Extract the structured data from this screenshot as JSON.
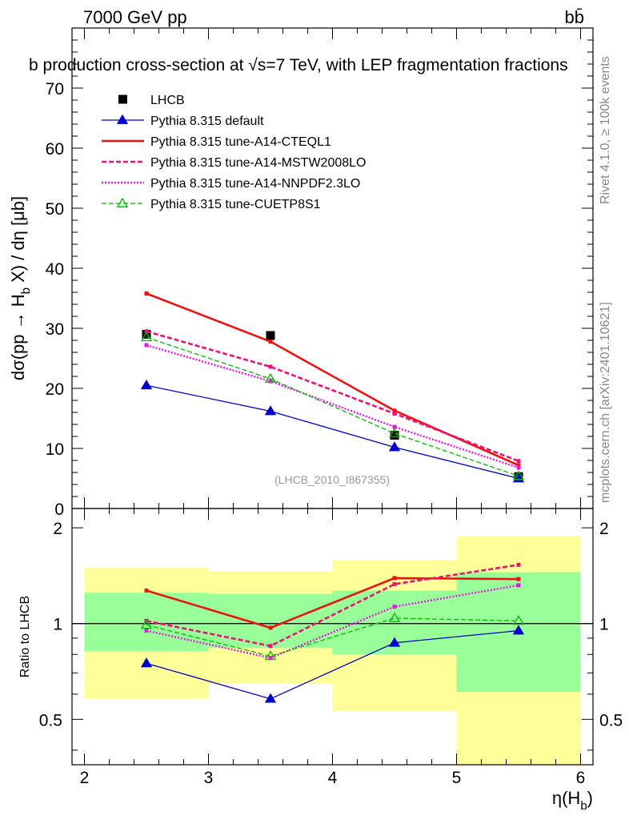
{
  "header": {
    "left": "7000 GeV pp",
    "right": "bb̄"
  },
  "side_text": {
    "top": "Rivet 4.1.0, ≥ 100k events",
    "bottom": "mcplots.cern.ch [arXiv:2401.10621]"
  },
  "chart_data": [
    {
      "type": "line",
      "title": "b production cross-section at √s=7 TeV, with LEP fragmentation fractions",
      "ylabel": "dσ(pp → H_b X) / dη [μb]",
      "xlabel": "η(H_b)",
      "xlim": [
        1.9,
        6.1
      ],
      "ylim": [
        0,
        80
      ],
      "yticks": [
        0,
        10,
        20,
        30,
        40,
        50,
        60,
        70
      ],
      "watermark": "(LHCB_2010_I867355)",
      "x": [
        2.5,
        3.5,
        4.5,
        5.5
      ],
      "series": [
        {
          "name": "LHCB",
          "color": "#000000",
          "values": [
            29.0,
            28.8,
            12.2,
            5.3
          ]
        },
        {
          "name": "Pythia 8.315 default",
          "color": "#0000cc",
          "values": [
            20.5,
            16.2,
            10.2,
            5.0
          ]
        },
        {
          "name": "Pythia 8.315 tune-A14-CTEQL1",
          "color": "#ee1111",
          "values": [
            35.8,
            27.8,
            16.3,
            7.2
          ]
        },
        {
          "name": "Pythia 8.315 tune-A14-MSTW2008LO",
          "color": "#ee1177",
          "values": [
            29.5,
            23.6,
            15.8,
            7.9
          ]
        },
        {
          "name": "Pythia 8.315 tune-A14-NNPDF2.3LO",
          "color": "#ee11ee",
          "values": [
            27.2,
            21.2,
            13.6,
            6.8
          ]
        },
        {
          "name": "Pythia 8.315 tune-CUETP8S1",
          "color": "#00bb00",
          "values": [
            28.5,
            21.6,
            12.5,
            5.4
          ]
        }
      ]
    },
    {
      "type": "line",
      "ylabel": "Ratio to LHCB",
      "xlabel": "η(H_b)",
      "xlim": [
        1.9,
        6.1
      ],
      "ylim": [
        0.36,
        2.3
      ],
      "scale": "log",
      "yticks": [
        0.5,
        1,
        2
      ],
      "xticks": [
        2,
        3,
        4,
        5,
        6
      ],
      "x": [
        2.5,
        3.5,
        4.5,
        5.5
      ],
      "uncertainty_bins": [
        {
          "xmin": 2,
          "xmax": 3,
          "inner": [
            0.82,
            1.25
          ],
          "outer": [
            0.58,
            1.5
          ]
        },
        {
          "xmin": 3,
          "xmax": 4,
          "inner": [
            0.84,
            1.24
          ],
          "outer": [
            0.65,
            1.46
          ]
        },
        {
          "xmin": 4,
          "xmax": 5,
          "inner": [
            0.8,
            1.27
          ],
          "outer": [
            0.53,
            1.58
          ]
        },
        {
          "xmin": 5,
          "xmax": 6,
          "inner": [
            0.61,
            1.45
          ],
          "outer": [
            0.35,
            1.88
          ]
        }
      ],
      "series": [
        {
          "name": "Pythia 8.315 default",
          "values": [
            0.75,
            0.58,
            0.87,
            0.95
          ]
        },
        {
          "name": "Pythia 8.315 tune-A14-CTEQL1",
          "values": [
            1.27,
            0.97,
            1.39,
            1.38
          ]
        },
        {
          "name": "Pythia 8.315 tune-A14-MSTW2008LO",
          "values": [
            1.02,
            0.85,
            1.33,
            1.53
          ]
        },
        {
          "name": "Pythia 8.315 tune-A14-NNPDF2.3LO",
          "values": [
            0.95,
            0.78,
            1.13,
            1.32
          ]
        },
        {
          "name": "Pythia 8.315 tune-CUETP8S1",
          "values": [
            0.99,
            0.79,
            1.04,
            1.02
          ]
        }
      ]
    }
  ]
}
